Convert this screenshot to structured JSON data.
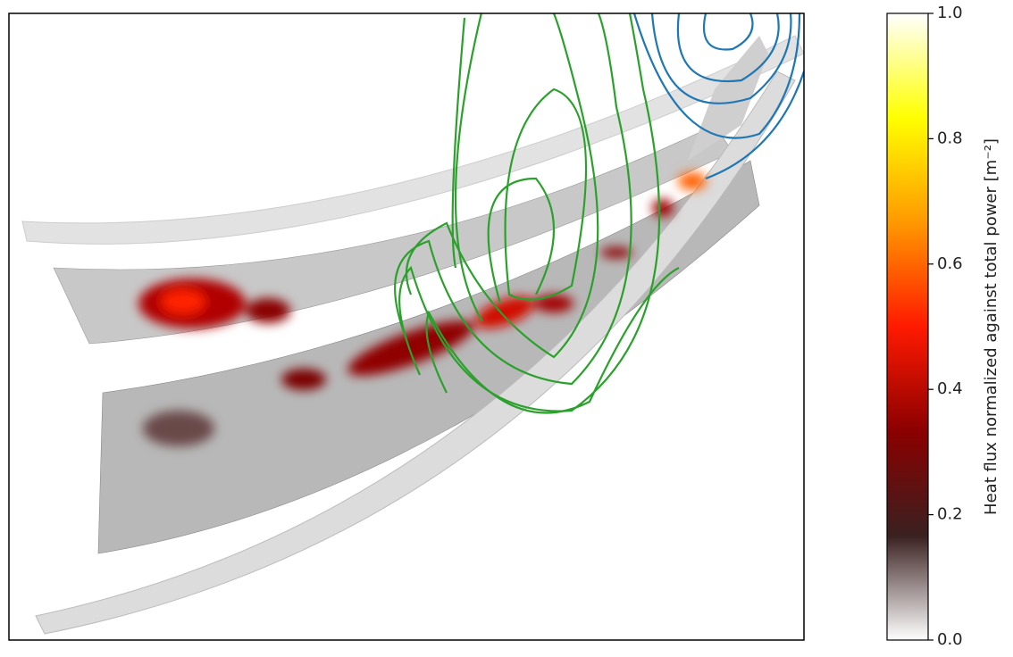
{
  "chart_data": {
    "type": "surface",
    "colorbar": {
      "label": "Heat flux normalized against total power [m⁻²]",
      "clim": [
        0,
        1
      ],
      "cticks": [
        {
          "value": 0,
          "label": "0.0"
        },
        0.2,
        0.4,
        0.6,
        0.8,
        {
          "value": 1,
          "label": "1.0"
        }
      ],
      "colors": [
        "#ffffff",
        "#3a2020",
        "#8b0000",
        "#ff1a00",
        "#ff9900",
        "#ffff00",
        "#ffffff"
      ]
    }
  }
}
